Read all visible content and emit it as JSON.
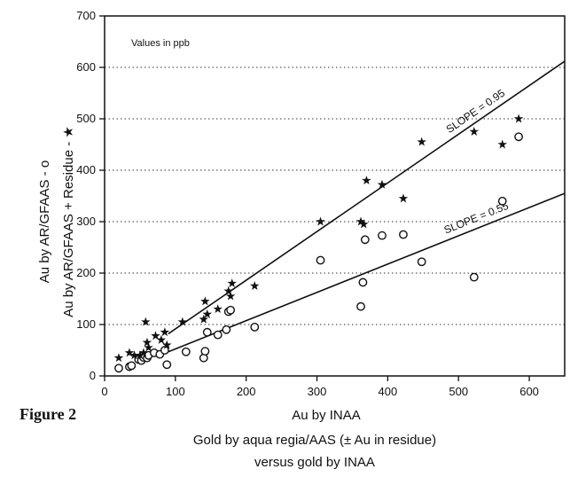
{
  "chart_data": {
    "type": "scatter",
    "xlabel": "Au by INAA",
    "ylabel_line1": "Au by AR/GFAAS - o",
    "ylabel_line2": "Au by AR/GFAAS + Residue - ★",
    "xlim": [
      0,
      650
    ],
    "ylim": [
      0,
      700
    ],
    "x_ticks": [
      0,
      100,
      200,
      300,
      400,
      500,
      600
    ],
    "y_ticks": [
      0,
      100,
      200,
      300,
      400,
      500,
      600,
      700
    ],
    "grid": "horizontal dotted",
    "annotation": "Values in ppb",
    "series": [
      {
        "marker": "circle",
        "points": [
          [
            20,
            15
          ],
          [
            35,
            18
          ],
          [
            38,
            20
          ],
          [
            48,
            32
          ],
          [
            52,
            30
          ],
          [
            55,
            36
          ],
          [
            60,
            35
          ],
          [
            62,
            40
          ],
          [
            70,
            45
          ],
          [
            78,
            42
          ],
          [
            85,
            50
          ],
          [
            88,
            22
          ],
          [
            115,
            47
          ],
          [
            140,
            35
          ],
          [
            142,
            48
          ],
          [
            145,
            85
          ],
          [
            160,
            80
          ],
          [
            172,
            90
          ],
          [
            175,
            125
          ],
          [
            178,
            128
          ],
          [
            212,
            95
          ],
          [
            305,
            225
          ],
          [
            362,
            135
          ],
          [
            365,
            182
          ],
          [
            368,
            265
          ],
          [
            392,
            273
          ],
          [
            422,
            275
          ],
          [
            448,
            222
          ],
          [
            522,
            192
          ],
          [
            562,
            340
          ],
          [
            585,
            465
          ]
        ]
      },
      {
        "marker": "star",
        "points": [
          [
            20,
            35
          ],
          [
            35,
            45
          ],
          [
            42,
            40
          ],
          [
            50,
            40
          ],
          [
            55,
            45
          ],
          [
            58,
            105
          ],
          [
            60,
            65
          ],
          [
            62,
            55
          ],
          [
            72,
            78
          ],
          [
            80,
            70
          ],
          [
            85,
            85
          ],
          [
            88,
            60
          ],
          [
            110,
            105
          ],
          [
            140,
            110
          ],
          [
            142,
            145
          ],
          [
            145,
            120
          ],
          [
            160,
            130
          ],
          [
            175,
            165
          ],
          [
            178,
            155
          ],
          [
            180,
            180
          ],
          [
            212,
            175
          ],
          [
            305,
            300
          ],
          [
            362,
            300
          ],
          [
            366,
            295
          ],
          [
            370,
            380
          ],
          [
            392,
            372
          ],
          [
            422,
            345
          ],
          [
            448,
            455
          ],
          [
            522,
            475
          ],
          [
            562,
            450
          ],
          [
            585,
            500
          ]
        ]
      }
    ],
    "lines": [
      {
        "label": "SLOPE = 0.95",
        "x": [
          90,
          650
        ],
        "y": [
          82,
          612
        ]
      },
      {
        "label": "SLOPE = 0.55",
        "x": [
          90,
          650
        ],
        "y": [
          47,
          355
        ]
      }
    ]
  },
  "figure_label": "Figure 2",
  "caption_line1": "Gold by aqua regia/AAS (± Au in residue)",
  "caption_line2": "versus gold by INAA"
}
